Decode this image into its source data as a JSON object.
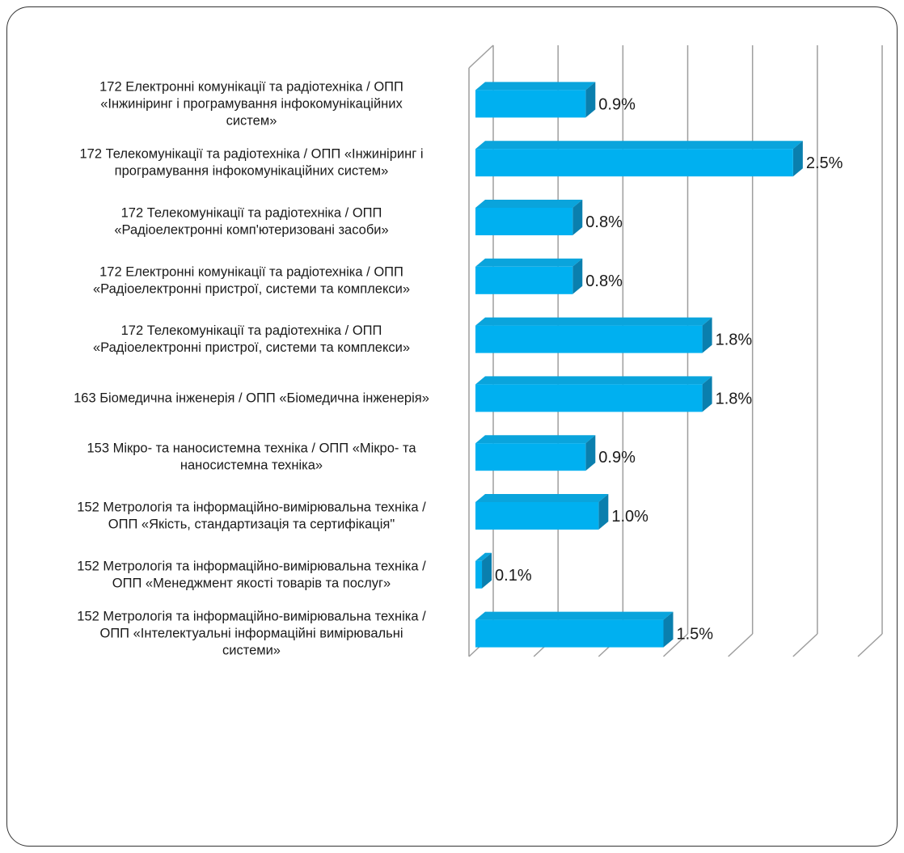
{
  "chart_data": {
    "type": "bar",
    "orientation": "horizontal",
    "style": "3d",
    "categories": [
      [
        "172 Електронні комунікації та радіотехніка / ОПП",
        "«Інжиніринг і програмування інфокомунікаційних",
        "систем»"
      ],
      [
        "172 Телекомунікації та радіотехніка / ОПП «Інжиніринг і",
        "програмування інфокомунікаційних систем»"
      ],
      [
        "172 Телекомунікації та радіотехніка / ОПП",
        "«Радіоелектронні комп'ютеризовані засоби»"
      ],
      [
        "172 Електронні комунікації та радіотехніка / ОПП",
        "«Радіоелектронні пристрої, системи та комплекси»"
      ],
      [
        "172 Телекомунікації та радіотехніка / ОПП",
        "«Радіоелектронні пристрої, системи та комплекси»"
      ],
      [
        "163 Біомедична інженерія / ОПП «Біомедична інженерія»"
      ],
      [
        "153 Мікро- та наносистемна техніка / ОПП «Мікро- та",
        "наносистемна техніка»"
      ],
      [
        "152 Метрологія та інформаційно-вимірювальна техніка /",
        "ОПП «Якість, стандартизація та сертифікація\""
      ],
      [
        "152 Метрологія та інформаційно-вимірювальна техніка /",
        "ОПП «Менеджмент якості товарів та послуг»"
      ],
      [
        "152 Метрологія та інформаційно-вимірювальна техніка /",
        "ОПП «Інтелектуальні інформаційні вимірювальні",
        "системи»"
      ]
    ],
    "values": [
      0.9,
      2.5,
      0.8,
      0.8,
      1.8,
      1.8,
      0.9,
      1.0,
      0.1,
      1.5
    ],
    "value_labels": [
      "0.9%",
      "2.5%",
      "0.8%",
      "0.8%",
      "1.8%",
      "1.8%",
      "0.9%",
      "1.0%",
      "0.1%",
      "1.5%"
    ],
    "xlim": [
      0,
      3.0
    ],
    "grid": true,
    "legend": "none",
    "bar_colors": {
      "front": "#00B0F0",
      "top": "#0AA4DC",
      "side": "#0A7FAE"
    },
    "grid_color": "#9E9E9E"
  }
}
